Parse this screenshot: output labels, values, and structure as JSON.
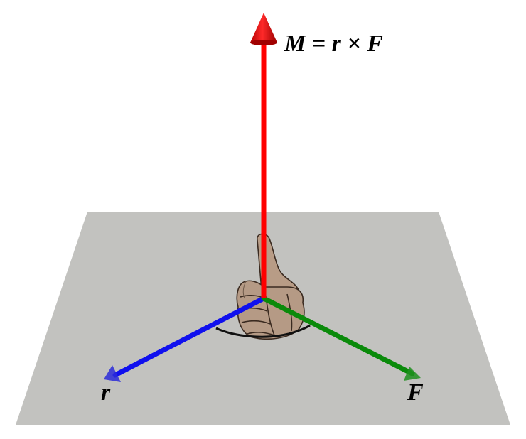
{
  "diagram": {
    "moment_label": "M = r × F",
    "r_label": "r",
    "f_label": "F"
  },
  "colors": {
    "plane": "#c2c2bf",
    "moment_vector": "#ff0000",
    "r_vector": "#1010ee",
    "f_vector": "#0a8a0a",
    "hand": "#b59a85"
  },
  "icons": {
    "hand": "thumbs-up-hand-icon"
  }
}
